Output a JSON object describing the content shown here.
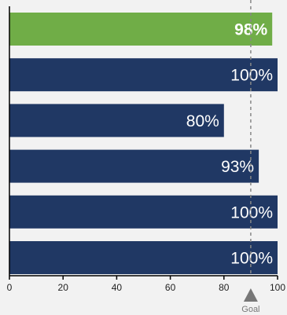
{
  "chart_data": {
    "type": "bar",
    "orientation": "horizontal",
    "categories": [
      "",
      "",
      "",
      "",
      "",
      ""
    ],
    "values": [
      98,
      100,
      80,
      93,
      100,
      100
    ],
    "data_labels": [
      "98%",
      "100%",
      "80%",
      "93%",
      "100%",
      "100%"
    ],
    "highlight_index": 0,
    "xlim": [
      0,
      100
    ],
    "xticks": [
      0,
      20,
      40,
      60,
      80,
      100
    ],
    "xtick_labels": [
      "0",
      "20",
      "40",
      "60",
      "80",
      "100"
    ],
    "goal": {
      "value": 90,
      "label": "Goal",
      "line_style": "dashed"
    },
    "grid": false,
    "legend": "none",
    "title": "",
    "xlabel": "",
    "ylabel": ""
  },
  "colors": {
    "background": "#f2f2f2",
    "bar": "#203864",
    "highlight_bar": "#70ad47",
    "goal_line": "#888888",
    "goal_marker": "#777777",
    "axis": "#000000"
  }
}
